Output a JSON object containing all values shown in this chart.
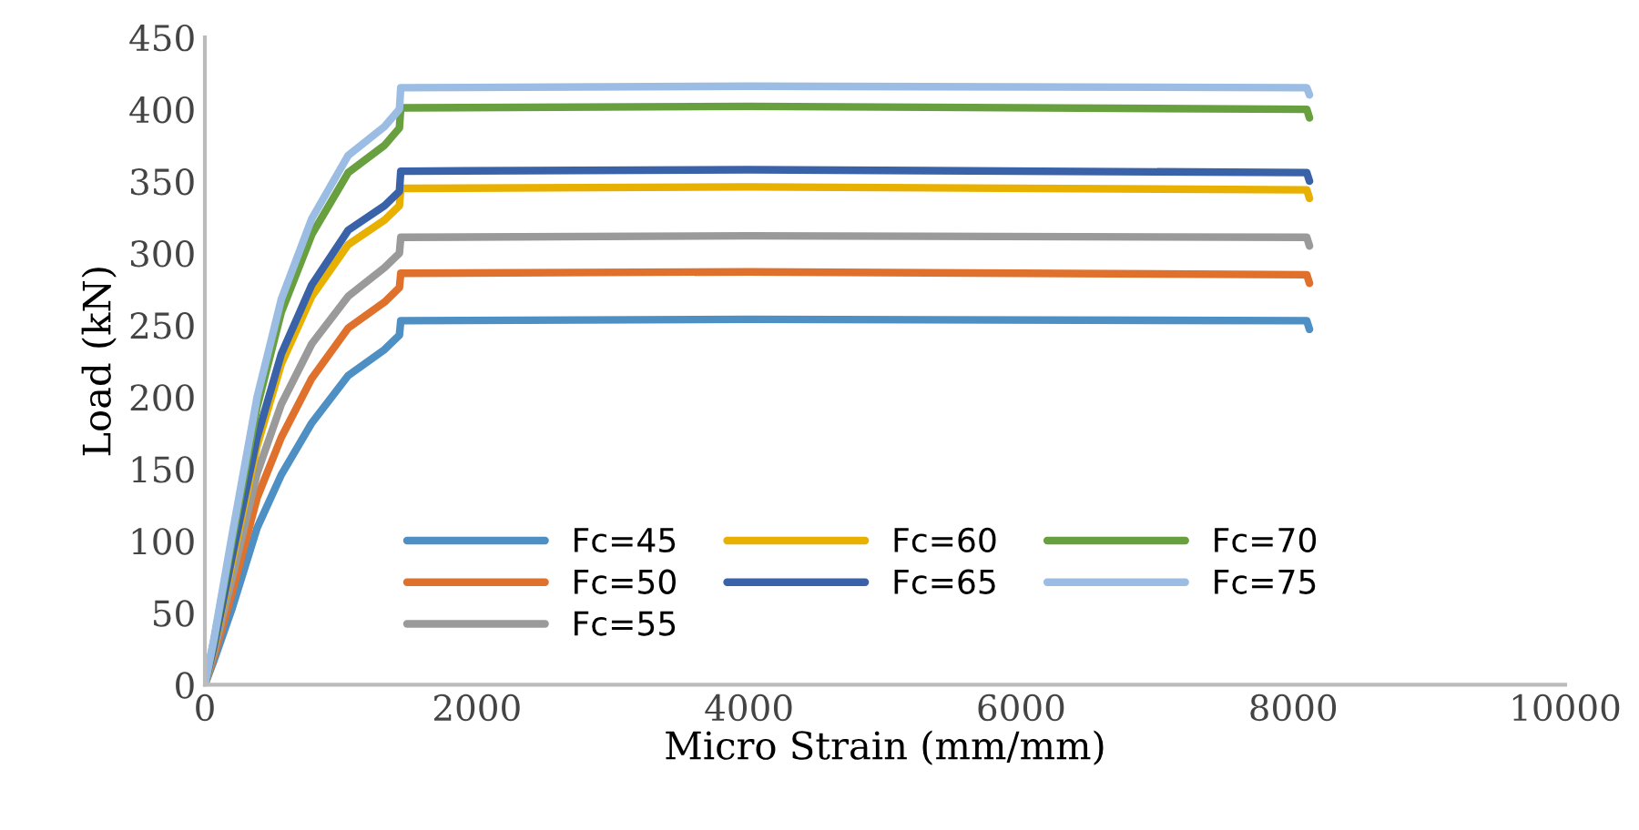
{
  "chart_data": {
    "type": "line",
    "xlabel": "Micro Strain (mm/mm)",
    "ylabel": "Load (kN)",
    "xlim": [
      0,
      10000
    ],
    "xticks": [
      0,
      2000,
      4000,
      6000,
      8000,
      10000
    ],
    "ylim": [
      0,
      450
    ],
    "yticks": [
      0,
      50,
      100,
      150,
      200,
      250,
      300,
      350,
      400,
      450
    ],
    "grid": false,
    "legend": "bottom right",
    "marker": "none",
    "line_style": "solid",
    "x": [
      0,
      67,
      200,
      384,
      562,
      786,
      1054,
      1321,
      1430,
      1440,
      1460,
      4000,
      8100,
      8120
    ],
    "series": [
      {
        "name": "Fc=45",
        "color": "#4e8fc4",
        "values": [
          0,
          17,
          53,
          109,
          146,
          182,
          215,
          233,
          243,
          253,
          253,
          254,
          253,
          247
        ]
      },
      {
        "name": "Fc=50",
        "color": "#e0712c",
        "values": [
          0,
          20,
          64,
          130,
          172,
          213,
          248,
          266,
          276,
          286,
          286,
          287,
          285,
          279
        ]
      },
      {
        "name": "Fc=55",
        "color": "#9a9a9a",
        "values": [
          0,
          23,
          74,
          147,
          195,
          237,
          270,
          290,
          300,
          311,
          311,
          312,
          311,
          305
        ]
      },
      {
        "name": "Fc=60",
        "color": "#e8b000",
        "values": [
          0,
          26,
          85,
          166,
          223,
          270,
          306,
          323,
          333,
          345,
          345,
          346,
          344,
          338
        ]
      },
      {
        "name": "Fc=65",
        "color": "#3a62a8",
        "values": [
          0,
          27,
          89,
          172,
          230,
          278,
          316,
          333,
          343,
          357,
          357,
          358,
          356,
          350
        ]
      },
      {
        "name": "Fc=70",
        "color": "#68a040",
        "values": [
          0,
          31,
          100,
          193,
          259,
          313,
          356,
          375,
          387,
          401,
          401,
          402,
          400,
          394
        ]
      },
      {
        "name": "Fc=75",
        "color": "#9cbde3",
        "values": [
          0,
          32,
          104,
          200,
          268,
          324,
          368,
          388,
          400,
          415,
          415,
          416,
          415,
          410
        ]
      }
    ]
  }
}
